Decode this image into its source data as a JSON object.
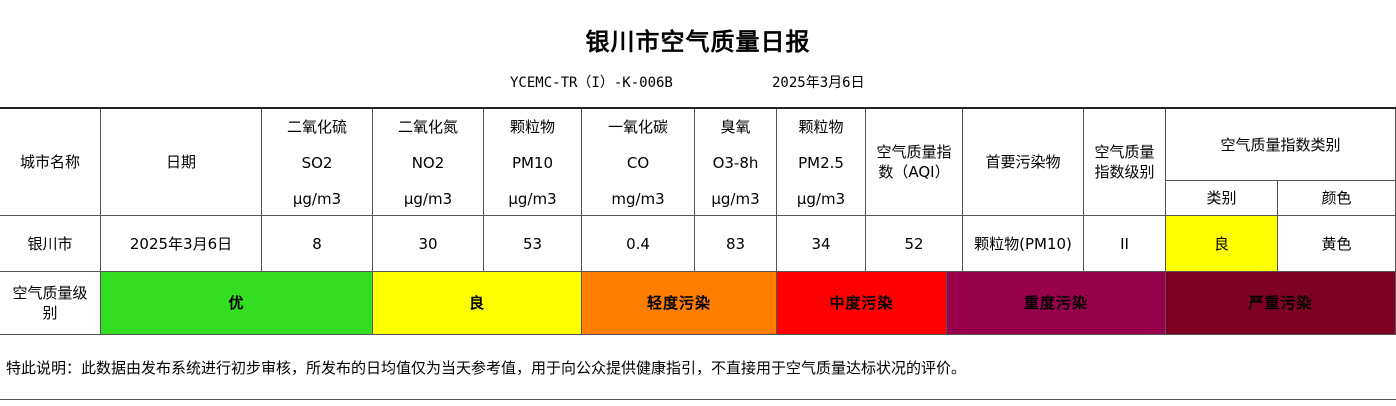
{
  "title": "银川市空气质量日报",
  "doc_code": "YCEMC-TR（I）-K-006B",
  "doc_date": "2025年3月6日",
  "header": {
    "city": "城市名称",
    "date": "日期",
    "so2": {
      "name": "二氧化硫",
      "code": "SO2",
      "unit": "μg/m3"
    },
    "no2": {
      "name": "二氧化氮",
      "code": "NO2",
      "unit": "μg/m3"
    },
    "pm10": {
      "name": "颗粒物",
      "code": "PM10",
      "unit": "μg/m3"
    },
    "co": {
      "name": "一氧化碳",
      "code": "CO",
      "unit": "mg/m3"
    },
    "o3": {
      "name": "臭氧",
      "code": "O3-8h",
      "unit": "μg/m3"
    },
    "pm25": {
      "name": "颗粒物",
      "code": "PM2.5",
      "unit": "μg/m3"
    },
    "aqi": "空气质量指数（AQI）",
    "primary": "首要污染物",
    "level": "空气质量指数级别",
    "category_group": "空气质量指数类别",
    "category": "类别",
    "color": "颜色"
  },
  "row": {
    "city": "银川市",
    "date": "2025年3月6日",
    "so2": "8",
    "no2": "30",
    "pm10": "53",
    "co": "0.4",
    "o3": "83",
    "pm25": "34",
    "aqi": "52",
    "primary": "颗粒物(PM10)",
    "level": "II",
    "category": "良",
    "color": "黄色"
  },
  "category_highlight": "#ffff00",
  "scale": {
    "label": "空气质量级别",
    "levels": [
      {
        "label": "优",
        "color": "#33dd22"
      },
      {
        "label": "良",
        "color": "#ffff00"
      },
      {
        "label": "轻度污染",
        "color": "#ff7e00"
      },
      {
        "label": "中度污染",
        "color": "#ff0000"
      },
      {
        "label": "重度污染",
        "color": "#99004c"
      },
      {
        "label": "严重污染",
        "color": "#7e0023"
      }
    ]
  },
  "note": "特此说明：此数据由发布系统进行初步审核，所发布的日均值仅为当天参考值，用于向公众提供健康指引，不直接用于空气质量达标状况的评价。"
}
